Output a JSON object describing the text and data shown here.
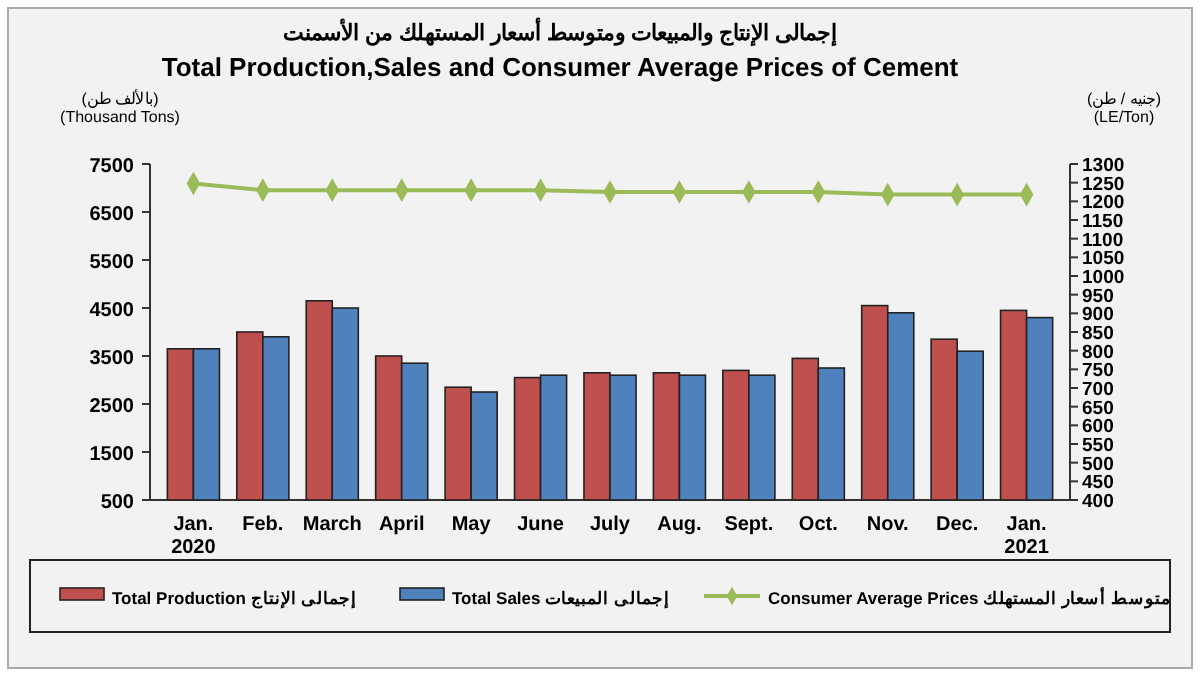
{
  "chart_data": {
    "type": "bar",
    "title": "إجمالى الإنتاج والمبيعات ومتوسط أسعار المستهلك من الأسمنت",
    "subtitle": "Total Production,Sales and Consumer Average Prices of Cement",
    "ylabel": "(بالألف طن)\n(Thousand Tons)",
    "y2label": "(جنيه / طن)\n(LE/Ton)",
    "categories": [
      "Jan.\n2020",
      "Feb.",
      "March",
      "April",
      "May",
      "June",
      "July",
      "Aug.",
      "Sept.",
      "Oct.",
      "Nov.",
      "Dec.",
      "Jan.\n2021"
    ],
    "series": [
      {
        "name": "Total Production  إجمالى الإنتاج",
        "color": "#c0504d",
        "values": [
          3650,
          4000,
          4650,
          3500,
          2850,
          3050,
          3150,
          3150,
          3200,
          3450,
          4550,
          3850,
          4450
        ]
      },
      {
        "name": "Total Sales  إجمالى المبيعات",
        "color": "#4f81bd",
        "values": [
          3650,
          3900,
          4500,
          3350,
          2750,
          3100,
          3100,
          3100,
          3100,
          3250,
          4400,
          3600,
          4300
        ]
      },
      {
        "name": "Consumer Average Prices  متوسط أسعار المستهلك",
        "type": "line",
        "axis": "y2",
        "color": "#9bbb59",
        "marker": "diamond",
        "values": [
          1248,
          1230,
          1230,
          1230,
          1230,
          1230,
          1225,
          1225,
          1225,
          1225,
          1218,
          1218,
          1218
        ]
      }
    ],
    "ylim": [
      500,
      7500
    ],
    "yticks": [
      500,
      1500,
      2500,
      3500,
      4500,
      5500,
      6500,
      7500
    ],
    "y2lim": [
      400,
      1300
    ],
    "y2ticks": [
      400,
      450,
      500,
      550,
      600,
      650,
      700,
      750,
      800,
      850,
      900,
      950,
      1000,
      1050,
      1100,
      1150,
      1200,
      1250,
      1300
    ],
    "legend": "bottom",
    "grid": false
  }
}
